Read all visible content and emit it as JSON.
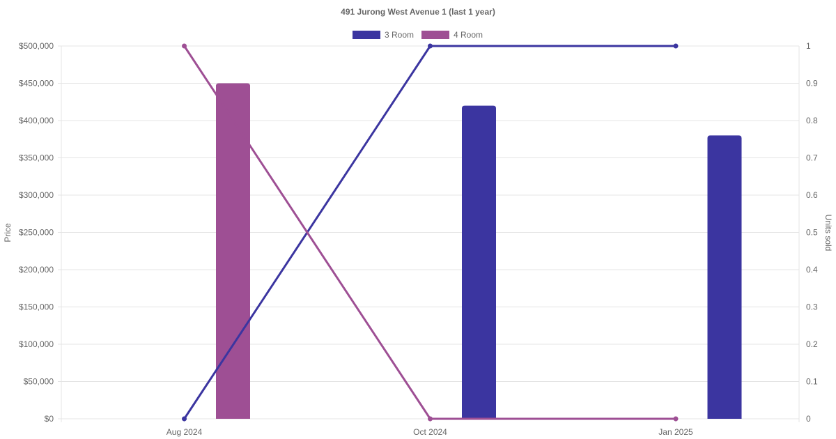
{
  "chart_data": {
    "type": "bar",
    "title": "491 Jurong West Avenue 1 (last 1 year)",
    "x_ticks": [
      "Aug 2024",
      "Oct 2024",
      "Jan 2025"
    ],
    "y_left": {
      "label": "Price",
      "range": [
        0,
        500000
      ],
      "ticks": [
        "$0",
        "$50,000",
        "$100,000",
        "$150,000",
        "$200,000",
        "$250,000",
        "$300,000",
        "$350,000",
        "$400,000",
        "$450,000",
        "$500,000"
      ]
    },
    "y_right": {
      "label": "Units sold",
      "range": [
        0,
        1
      ],
      "ticks": [
        "0",
        "0.1",
        "0.2",
        "0.3",
        "0.4",
        "0.5",
        "0.6",
        "0.7",
        "0.8",
        "0.9",
        "1"
      ]
    },
    "legend_position": "top",
    "grid": true,
    "series": [
      {
        "name": "3 Room",
        "color": "#3b35a0",
        "price": [
          {
            "month": "Oct 2024",
            "value": 420000
          },
          {
            "month": "Jan 2025",
            "value": 380000
          }
        ],
        "units_sold": [
          {
            "month": "Aug 2024",
            "value": 0
          },
          {
            "month": "Oct 2024",
            "value": 1
          },
          {
            "month": "Jan 2025",
            "value": 1
          }
        ]
      },
      {
        "name": "4 Room",
        "color": "#9e4f94",
        "price": [
          {
            "month": "Aug 2024",
            "value": 450000
          }
        ],
        "units_sold": [
          {
            "month": "Aug 2024",
            "value": 1
          },
          {
            "month": "Oct 2024",
            "value": 0
          },
          {
            "month": "Jan 2025",
            "value": 0
          }
        ]
      }
    ]
  }
}
